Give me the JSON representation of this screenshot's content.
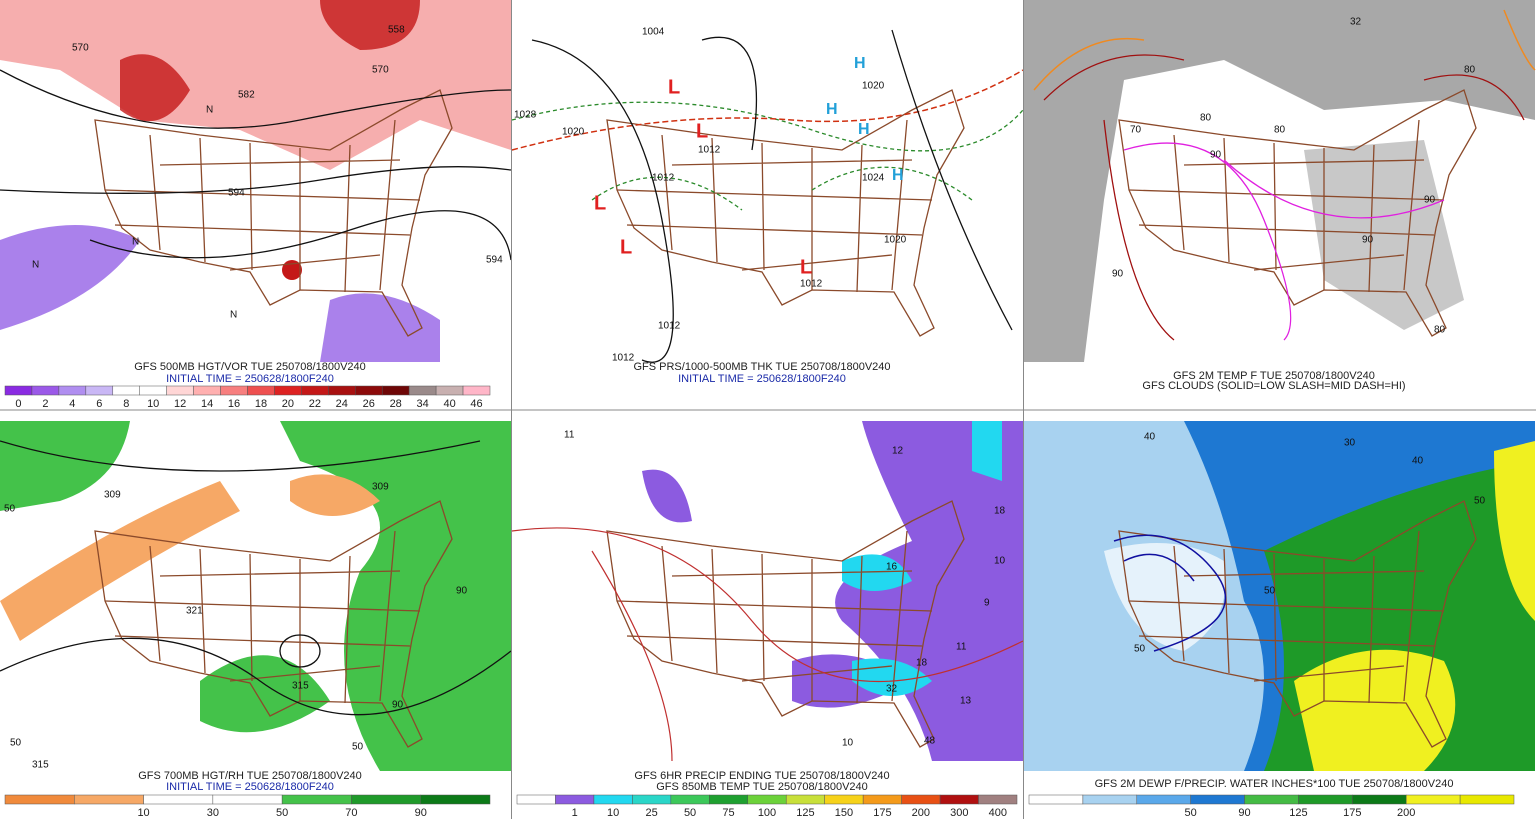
{
  "panels": [
    {
      "caption": [
        "GFS 500MB HGT/VOR TUE 250708/1800V240",
        "INITIAL TIME = 250628/1800F240"
      ],
      "colorbar": {
        "labels": [
          0,
          2,
          4,
          6,
          8,
          10,
          12,
          14,
          16,
          18,
          20,
          22,
          24,
          26,
          28,
          34,
          40,
          46
        ],
        "colors": [
          "#8a2be2",
          "#9b59e8",
          "#b08ef0",
          "#c9b7f5",
          "#ffffff",
          "#ffffff",
          "#ffd6d6",
          "#ffb0b0",
          "#f77f7f",
          "#ee5050",
          "#dd2222",
          "#c41818",
          "#a81010",
          "#8c0a0a",
          "#6e0606",
          "#9a8a8a",
          "#c8b0b0",
          "#ffb6c8"
        ]
      },
      "map_labels": [
        "570",
        "582",
        "594",
        "570",
        "558",
        "594",
        "N",
        "N",
        "N",
        "N"
      ]
    },
    {
      "caption": [
        "GFS PRS/1000-500MB THK TUE 250708/1800V240",
        "INITIAL TIME = 250628/1800F240"
      ],
      "map_labels": [
        "1004",
        "1012",
        "1020",
        "1028",
        "1012",
        "1012",
        "1012",
        "1012",
        "1020",
        "1020",
        "1024",
        "L",
        "L",
        "L",
        "L",
        "L",
        "H",
        "H",
        "H",
        "H"
      ]
    },
    {
      "caption": [
        "GFS 2M TEMP F TUE 250708/1800V240",
        "GFS CLOUDS (SOLID=LOW SLASH=MID DASH=HI)"
      ],
      "map_labels": [
        "80",
        "70",
        "90",
        "90",
        "80",
        "90",
        "80",
        "90",
        "80",
        "32"
      ]
    },
    {
      "caption": [
        "GFS 700MB HGT/RH TUE 250708/1800V240",
        "INITIAL TIME = 250628/1800F240"
      ],
      "colorbar": {
        "labels": [
          10,
          30,
          50,
          70,
          90
        ],
        "colors": [
          "#f08a3c",
          "#f6a866",
          "#ffffff",
          "#ffffff",
          "#44c24a",
          "#1f9a2a",
          "#0c7a18"
        ]
      },
      "map_labels": [
        "309",
        "321",
        "50",
        "90",
        "315",
        "50",
        "90",
        "50",
        "315",
        "309"
      ]
    },
    {
      "caption": [
        "GFS 6HR PRECIP ENDING TUE 250708/1800V240",
        "GFS 850MB TEMP TUE 250708/1800V240"
      ],
      "colorbar": {
        "labels": [
          1,
          10,
          25,
          50,
          75,
          100,
          125,
          150,
          175,
          200,
          300,
          400
        ],
        "colors": [
          "#ffffff",
          "#8c5be0",
          "#22d8f0",
          "#2ad6c8",
          "#3cc85a",
          "#1ea030",
          "#6cd23a",
          "#c8e03a",
          "#f6d21a",
          "#f49a1a",
          "#e85014",
          "#b01010",
          "#a08080"
        ]
      },
      "map_labels": [
        "11",
        "12",
        "18",
        "16",
        "10",
        "9",
        "18",
        "11",
        "13",
        "10",
        "48",
        "32"
      ]
    },
    {
      "caption": [
        "GFS 2M DEWP F/PRECIP. WATER INCHES*100 TUE 250708/1800V240"
      ],
      "colorbar": {
        "labels": [
          50,
          90,
          125,
          175,
          200
        ],
        "colors": [
          "#ffffff",
          "#a8d2f0",
          "#5aa8ea",
          "#1e78d2",
          "#44bb44",
          "#1e9a28",
          "#0c7a18",
          "#f0f020",
          "#e8e800"
        ]
      },
      "map_labels": [
        "50",
        "40",
        "50",
        "40",
        "50",
        "30"
      ]
    }
  ]
}
